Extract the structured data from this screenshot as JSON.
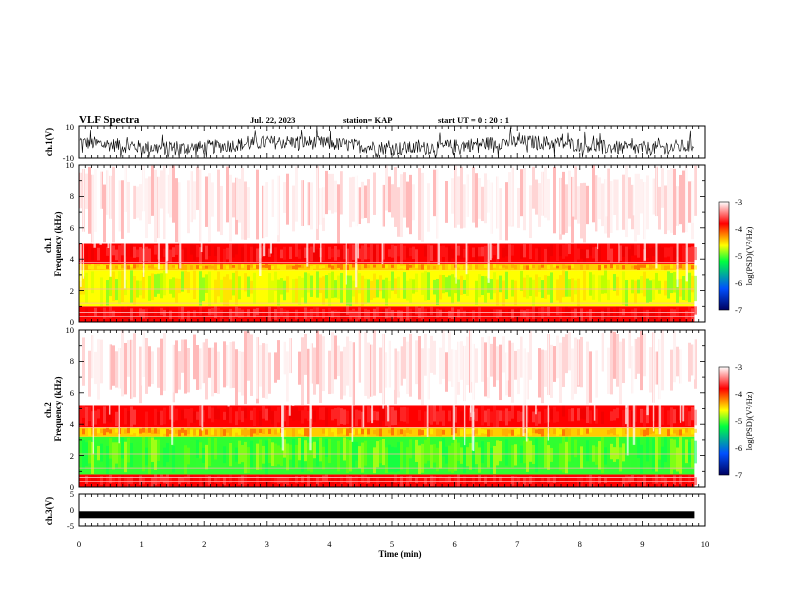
{
  "header": {
    "title": "VLF Spectra",
    "date": "Jul. 22, 2023",
    "station": "station= KAP",
    "start": "start UT =   0 : 20 : 1"
  },
  "chart_data": [
    {
      "type": "line",
      "name": "ch1-waveform",
      "ylabel": "ch.1(V)",
      "ylim": [
        -10,
        10
      ],
      "y_ticks": [
        "10",
        "-10"
      ],
      "xlim": [
        0,
        10
      ]
    },
    {
      "type": "heatmap",
      "name": "ch1-spectrogram",
      "ylabel": "ch.1\nFrequency (kHz)",
      "ylim": [
        0,
        10
      ],
      "y_ticks": [
        "0",
        "2",
        "4",
        "6",
        "8",
        "10"
      ],
      "xlim": [
        0,
        10
      ],
      "x_data_end": 9.83,
      "colorbar": {
        "label": "log(PSD)(V²/Hz)",
        "range": [
          -7,
          -3
        ],
        "ticks": [
          "-3",
          "-4",
          "-5",
          "-6",
          "-7"
        ],
        "colors": [
          "#000060",
          "#0050ff",
          "#00ff40",
          "#ffff00",
          "#ff0000",
          "#ffffff"
        ]
      },
      "bands": [
        {
          "from": 0,
          "to": 1,
          "level": "red"
        },
        {
          "from": 1,
          "to": 3.3,
          "level": "green-yellow"
        },
        {
          "from": 3.3,
          "to": 3.7,
          "level": "yellow"
        },
        {
          "from": 3.7,
          "to": 5,
          "level": "red"
        },
        {
          "from": 5,
          "to": 10,
          "level": "white-red"
        }
      ]
    },
    {
      "type": "heatmap",
      "name": "ch2-spectrogram",
      "ylabel": "ch.2\nFrequency (kHz)",
      "ylim": [
        0,
        10
      ],
      "y_ticks": [
        "0",
        "2",
        "4",
        "6",
        "8",
        "10"
      ],
      "xlim": [
        0,
        10
      ],
      "x_data_end": 9.83,
      "colorbar": {
        "label": "log(PSD)(V²/Hz)",
        "range": [
          -7,
          -3
        ],
        "ticks": [
          "-3",
          "-4",
          "-5",
          "-6",
          "-7"
        ],
        "colors": [
          "#000060",
          "#0050ff",
          "#00ff40",
          "#ffff00",
          "#ff0000",
          "#ffffff"
        ]
      },
      "bands": [
        {
          "from": 0,
          "to": 0.8,
          "level": "red"
        },
        {
          "from": 0.8,
          "to": 3.2,
          "level": "green"
        },
        {
          "from": 3.2,
          "to": 3.8,
          "level": "yellow"
        },
        {
          "from": 3.8,
          "to": 5.2,
          "level": "red"
        },
        {
          "from": 5.2,
          "to": 10,
          "level": "white-red"
        }
      ]
    },
    {
      "type": "line",
      "name": "ch3-waveform",
      "ylabel": "ch.3(V)",
      "ylim": [
        -5,
        5
      ],
      "y_ticks": [
        "5",
        "0",
        "-5"
      ],
      "xlim": [
        0,
        10
      ],
      "level": -1.5
    }
  ],
  "x_axis": {
    "label": "Time (min)",
    "ticks": [
      "0",
      "1",
      "2",
      "3",
      "4",
      "5",
      "6",
      "7",
      "8",
      "9",
      "10"
    ]
  }
}
